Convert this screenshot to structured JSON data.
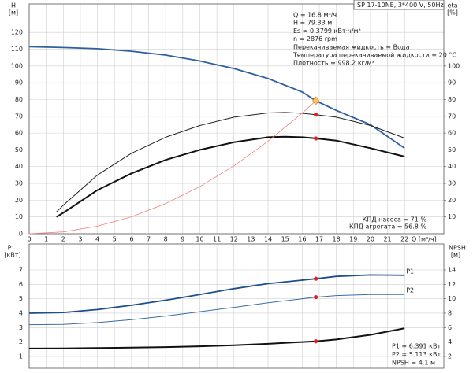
{
  "chart_data": [
    {
      "type": "line",
      "header": "SP 17-10NE, 3*400 V, 50Hz",
      "ylabel": [
        "H",
        "[м]"
      ],
      "y2label": [
        "eta",
        "[%]"
      ],
      "xlabel": "Q [м³/ч]",
      "xlim": [
        0,
        24.3
      ],
      "xticks": [
        0,
        1,
        2,
        3,
        4,
        5,
        6,
        7,
        8,
        9,
        10,
        11,
        12,
        13,
        14,
        15,
        16,
        17,
        18,
        19,
        20,
        21,
        22
      ],
      "xtick_labels": true,
      "ylim": [
        0,
        137
      ],
      "yticks": [
        0,
        10,
        20,
        30,
        40,
        50,
        60,
        70,
        80,
        90,
        100,
        110,
        120
      ],
      "y2lim": [
        0,
        137
      ],
      "y2ticks": [
        10,
        20,
        30,
        40,
        50,
        60,
        70,
        80,
        90,
        100
      ],
      "grid": true,
      "info": [
        "Q = 16.8 м³/ч",
        "H = 79.33 м",
        "Es = 0.3799 кВт·ч/м³",
        "n = 2876 rpm",
        "Перекачиваемая жидкость = Вода",
        "Температура перекачиваемой жидкости = 20 °C",
        "Плотность = 998.2 кг/м³"
      ],
      "annotations": [
        "КПД насоса = 71 %",
        "КПД агрегата = 56.8 %"
      ],
      "series": [
        {
          "color": "#2e5f9e",
          "width": 1.8,
          "x": [
            0,
            2,
            4,
            6,
            8,
            10,
            12,
            14,
            16,
            16.8,
            18,
            20,
            22
          ],
          "values": [
            111.5,
            111,
            110.3,
            108.8,
            106.5,
            103,
            98.5,
            92.5,
            84.5,
            79.3,
            73.5,
            65,
            51
          ]
        },
        {
          "color": "#222222",
          "width": 1,
          "axis": "y2",
          "x": [
            1.6,
            2,
            4,
            6,
            8,
            10,
            12,
            14,
            15,
            16,
            16.8,
            18,
            20,
            22
          ],
          "values": [
            13,
            17,
            35,
            48,
            57.5,
            64.5,
            69.5,
            72,
            72.3,
            71.8,
            71,
            69.5,
            64.5,
            57
          ]
        },
        {
          "color": "#111111",
          "width": 2,
          "axis": "y2",
          "x": [
            1.6,
            2,
            4,
            6,
            8,
            10,
            12,
            14,
            15,
            16,
            16.8,
            18,
            20,
            22
          ],
          "values": [
            10,
            12.5,
            26,
            36,
            44,
            50,
            54.5,
            57.5,
            57.8,
            57.5,
            56.8,
            55.5,
            51,
            46
          ]
        },
        {
          "color": "#f08080",
          "width": 0.8,
          "x": [
            0,
            2,
            4,
            6,
            8,
            10,
            12,
            14,
            16,
            16.8
          ],
          "values": [
            0,
            1.1,
            4.5,
            10.1,
            18,
            28.1,
            40.5,
            55.1,
            71.9,
            79.3
          ]
        }
      ],
      "markers": [
        {
          "x": 16.8,
          "y": 79.3,
          "color": "#f7c948",
          "shape": "diamond"
        },
        {
          "x": 16.8,
          "y": 71,
          "color": "#e02020",
          "axis": "y2",
          "shape": "dot"
        },
        {
          "x": 16.8,
          "y": 56.8,
          "color": "#e02020",
          "axis": "y2",
          "shape": "dot"
        }
      ]
    },
    {
      "type": "line",
      "ylabel": [
        "P",
        "[кВт]"
      ],
      "y2label": [
        "NPSH",
        "[м]"
      ],
      "xlim": [
        0,
        24.3
      ],
      "xticks": [
        0,
        1,
        2,
        3,
        4,
        5,
        6,
        7,
        8,
        9,
        10,
        11,
        12,
        13,
        14,
        15,
        16,
        17,
        18,
        19,
        20,
        21,
        22
      ],
      "xtick_labels": false,
      "ylim": [
        0.18,
        8.8
      ],
      "yticks": [
        1,
        2,
        3,
        4,
        5,
        6,
        7
      ],
      "y2lim": [
        0.36,
        17.6
      ],
      "y2ticks": [
        2,
        4,
        6,
        8,
        10,
        12,
        14
      ],
      "grid": true,
      "annotations": [
        "P1 = 6.391 кВт",
        "P2 = 5.113 кВт",
        "NPSH = 4.1 м"
      ],
      "series": [
        {
          "name": "P1",
          "color": "#1f4e8c",
          "width": 1.8,
          "x": [
            0,
            2,
            4,
            6,
            8,
            10,
            12,
            14,
            16.8,
            18,
            20,
            22
          ],
          "values": [
            4.0,
            4.05,
            4.25,
            4.55,
            4.9,
            5.3,
            5.7,
            6.05,
            6.391,
            6.55,
            6.65,
            6.63
          ]
        },
        {
          "name": "P2",
          "color": "#3a6ea5",
          "width": 1,
          "x": [
            0,
            2,
            4,
            6,
            8,
            10,
            12,
            14,
            16.8,
            18,
            20,
            22
          ],
          "values": [
            3.2,
            3.22,
            3.35,
            3.55,
            3.8,
            4.1,
            4.4,
            4.72,
            5.113,
            5.22,
            5.3,
            5.3
          ]
        },
        {
          "color": "#111111",
          "width": 2,
          "axis": "y2",
          "x": [
            0,
            2,
            4,
            6,
            8,
            10,
            12,
            14,
            16.8,
            18,
            20,
            22
          ],
          "values": [
            3.1,
            3.12,
            3.16,
            3.22,
            3.3,
            3.4,
            3.55,
            3.75,
            4.1,
            4.35,
            5.0,
            5.9
          ]
        }
      ],
      "markers": [
        {
          "x": 16.8,
          "y": 6.391,
          "color": "#e02020",
          "shape": "dot"
        },
        {
          "x": 16.8,
          "y": 5.113,
          "color": "#e02020",
          "shape": "dot"
        },
        {
          "x": 16.8,
          "y": 4.1,
          "color": "#e02020",
          "axis": "y2",
          "shape": "dot"
        }
      ]
    }
  ]
}
